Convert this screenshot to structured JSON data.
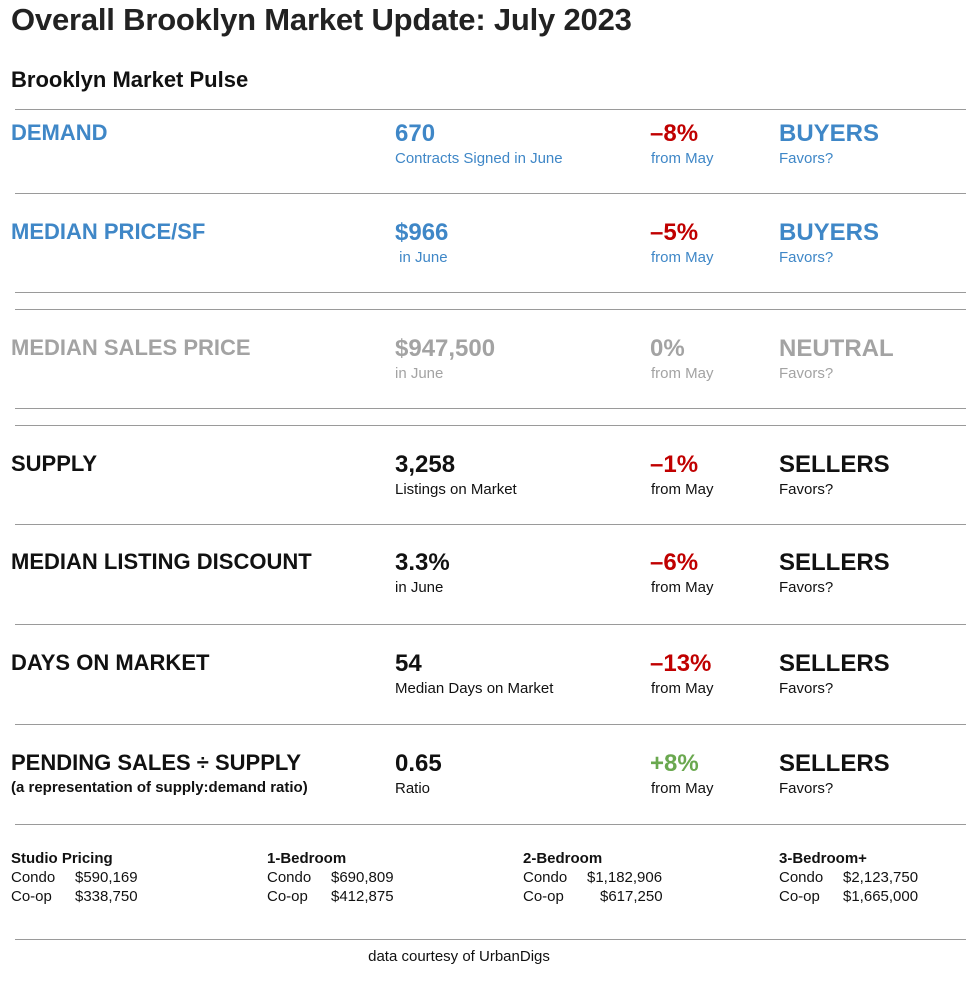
{
  "title": "Overall Brooklyn Market Update: July 2023",
  "subtitle": "Brooklyn Market Pulse",
  "rows": [
    {
      "metric": "DEMAND",
      "note": "",
      "value": "670",
      "value_sub": "Contracts Signed in June",
      "change": "–8%",
      "change_sub": "from May",
      "favor": "BUYERS",
      "favor_sub": "Favors?"
    },
    {
      "metric": "MEDIAN PRICE/SF",
      "note": "",
      "value": "$966",
      "value_sub": " in June",
      "change": "–5%",
      "change_sub": "from May",
      "favor": "BUYERS",
      "favor_sub": "Favors?"
    },
    {
      "metric": "MEDIAN SALES PRICE",
      "note": "",
      "value": "$947,500",
      "value_sub": "in June",
      "change": "0%",
      "change_sub": "from May",
      "favor": "NEUTRAL",
      "favor_sub": "Favors?"
    },
    {
      "metric": "SUPPLY",
      "note": "",
      "value": "3,258",
      "value_sub": "Listings on Market",
      "change": "–1%",
      "change_sub": "from May",
      "favor": "SELLERS",
      "favor_sub": "Favors?"
    },
    {
      "metric": "MEDIAN LISTING DISCOUNT",
      "note": "",
      "value": "3.3%",
      "value_sub": "in June",
      "change": "–6%",
      "change_sub": "from May",
      "favor": "SELLERS",
      "favor_sub": "Favors?"
    },
    {
      "metric": "DAYS ON MARKET",
      "note": "",
      "value": "54",
      "value_sub": "Median Days on Market",
      "change": "–13%",
      "change_sub": "from May",
      "favor": "SELLERS",
      "favor_sub": "Favors?"
    },
    {
      "metric": "PENDING SALES ÷ SUPPLY",
      "note": "(a representation of supply:demand ratio)",
      "value": "0.65",
      "value_sub": "Ratio",
      "change": "+8%",
      "change_sub": "from May",
      "favor": "SELLERS",
      "favor_sub": "Favors?"
    }
  ],
  "colors": {
    "buyers": "#3f87c7",
    "neutral": "#a3a3a3",
    "sellers": "#111111",
    "negative_change": "#c00000",
    "positive_change": "#6aa84f"
  },
  "pricing": [
    {
      "heading": "Studio Pricing",
      "condo_label": "Condo",
      "condo": "$590,169",
      "coop_label": "Co-op",
      "coop": "$338,750"
    },
    {
      "heading": "1-Bedroom",
      "condo_label": "Condo",
      "condo": "$690,809",
      "coop_label": "Co-op",
      "coop": "$412,875"
    },
    {
      "heading": "2-Bedroom",
      "condo_label": "Condo",
      "condo": "$1,182,906",
      "coop_label": "Co-op",
      "coop": "$617,250"
    },
    {
      "heading": "3-Bedroom+",
      "condo_label": "Condo",
      "condo": "$2,123,750",
      "coop_label": "Co-op",
      "coop": "$1,665,000"
    }
  ],
  "footer": "data courtesy of UrbanDigs"
}
